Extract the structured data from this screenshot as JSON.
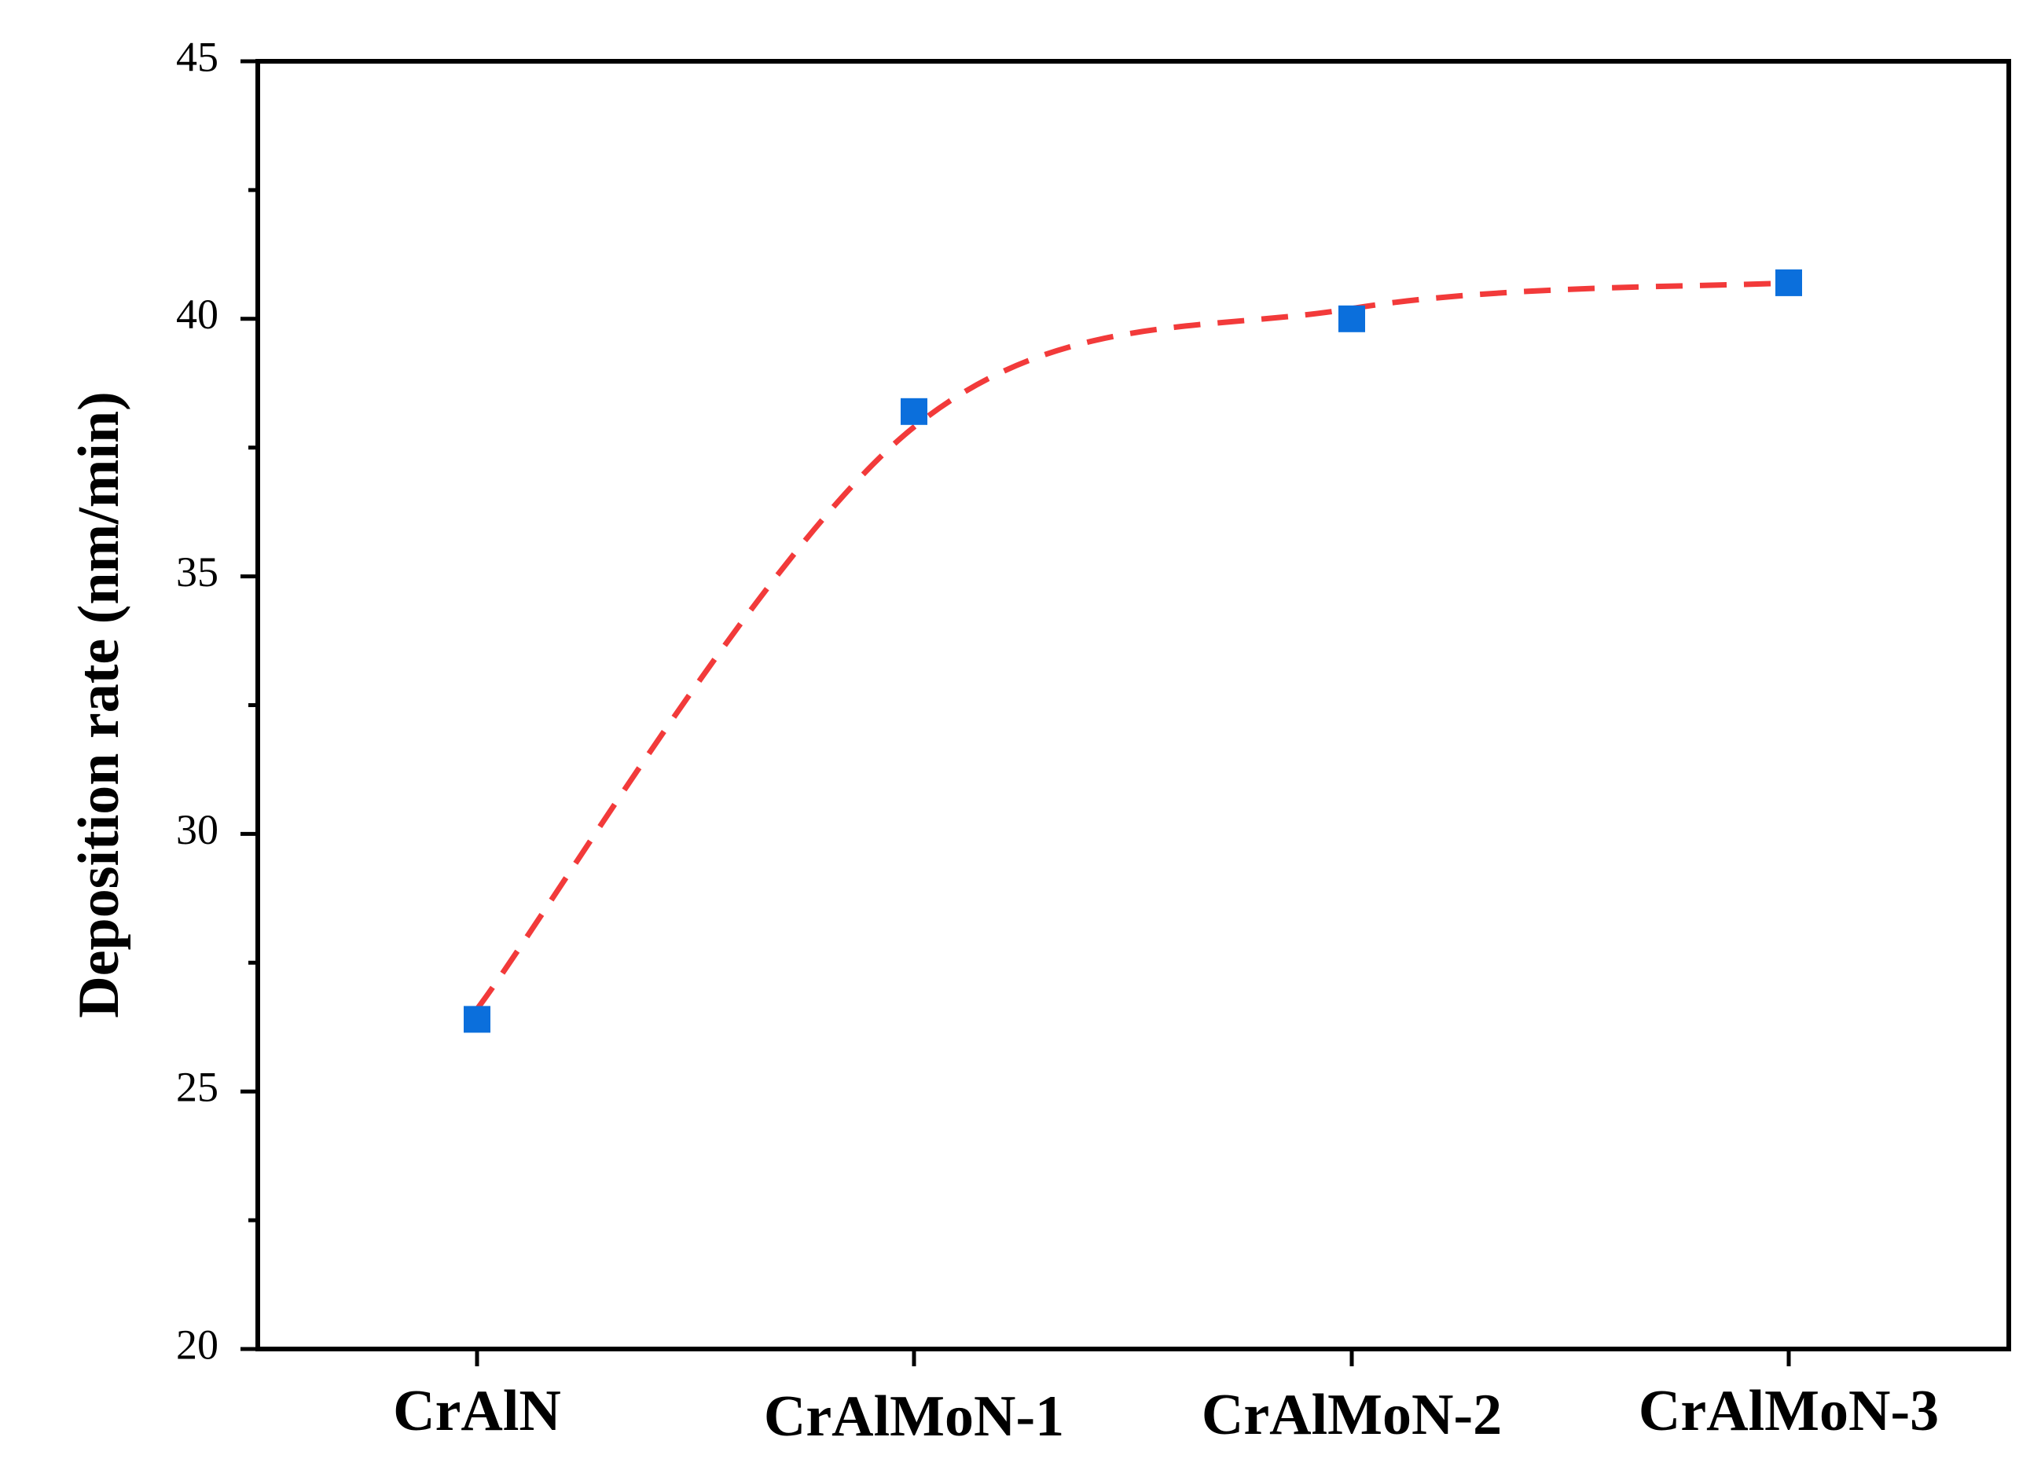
{
  "chart_data": {
    "type": "scatter",
    "title": "",
    "xlabel": "",
    "ylabel": "Deposition rate (nm/min)",
    "categories": [
      "CrAlN",
      "CrAlMoN-1",
      "CrAlMoN-2",
      "CrAlMoN-3"
    ],
    "series": [
      {
        "values": [
          26.4,
          38.2,
          40.0,
          40.7
        ],
        "marker": "square",
        "color": "#0b6fdc"
      }
    ],
    "fit_curve": {
      "style": "dashed",
      "color": "#f23a3a",
      "values": [
        26.6,
        37.9,
        40.2,
        40.7
      ]
    },
    "ylim": [
      20,
      45
    ],
    "yticks": [
      20,
      25,
      30,
      35,
      40,
      45
    ],
    "ytick_labels": [
      "20",
      "25",
      "30",
      "35",
      "40",
      "45"
    ],
    "grid": false,
    "legend": "none"
  }
}
